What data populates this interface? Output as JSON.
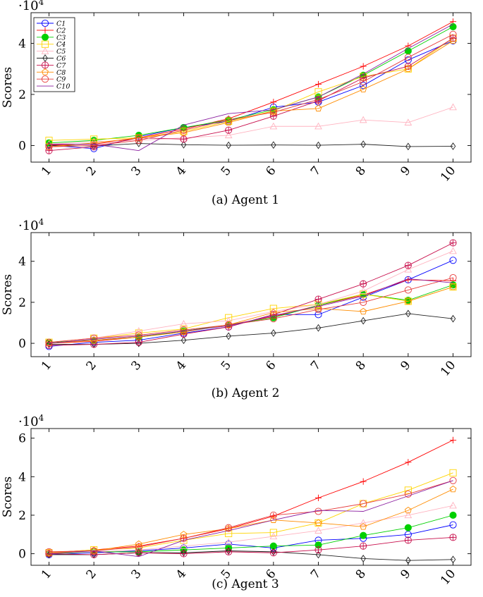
{
  "figure": {
    "subplot_ids": [
      "agent1",
      "agent2",
      "agent3"
    ]
  },
  "chart_data": [
    {
      "id": "agent1",
      "type": "line",
      "caption": "(a) Agent 1",
      "ylabel": "Scores",
      "multiplier": "·10",
      "multiplier_exp": "4",
      "xlim": [
        0.6,
        10.4
      ],
      "ylim": [
        -6500,
        52000
      ],
      "yticks": [
        0,
        20000,
        40000
      ],
      "ytick_labels": [
        "0",
        "2",
        "4"
      ],
      "x": [
        1,
        2,
        3,
        4,
        5,
        6,
        7,
        8,
        9,
        10
      ],
      "xtick_labels": [
        "1",
        "2",
        "3",
        "4",
        "5",
        "6",
        "7",
        "8",
        "9",
        "10"
      ],
      "legend": {
        "position": "top-left",
        "labels": [
          "C1",
          "C2",
          "C3",
          "C4",
          "C5",
          "C6",
          "C7",
          "C8",
          "C9",
          "C10"
        ]
      },
      "series": [
        {
          "name": "C1",
          "values": [
            100,
            -1200,
            3500,
            7000,
            9500,
            15000,
            17000,
            23500,
            33500,
            41000
          ]
        },
        {
          "name": "C2",
          "values": [
            200,
            500,
            3000,
            6500,
            10500,
            17000,
            24000,
            31000,
            39000,
            48500
          ]
        },
        {
          "name": "C3",
          "values": [
            1000,
            2000,
            4000,
            7000,
            10000,
            14000,
            19000,
            27500,
            37000,
            46500
          ]
        },
        {
          "name": "C4",
          "values": [
            2000,
            2500,
            3000,
            5500,
            9500,
            13500,
            21000,
            27000,
            30000,
            42000
          ]
        },
        {
          "name": "C5",
          "values": [
            500,
            1500,
            2000,
            3000,
            4000,
            7500,
            7500,
            10000,
            9000,
            15000
          ]
        },
        {
          "name": "C6",
          "values": [
            0,
            -200,
            800,
            300,
            100,
            200,
            100,
            500,
            -400,
            -300
          ]
        },
        {
          "name": "C7",
          "values": [
            -2000,
            -500,
            3000,
            2500,
            6000,
            11500,
            17500,
            26500,
            31000,
            42000
          ]
        },
        {
          "name": "C8",
          "values": [
            -500,
            1000,
            3000,
            5000,
            9000,
            13500,
            14500,
            22000,
            30000,
            41000
          ]
        },
        {
          "name": "C9",
          "values": [
            -500,
            0,
            2000,
            6000,
            10000,
            13000,
            18000,
            25000,
            34500,
            43500
          ]
        },
        {
          "name": "C10",
          "values": [
            500,
            500,
            -2000,
            8000,
            12500,
            14000,
            19000,
            28000,
            38000,
            47500
          ]
        }
      ]
    },
    {
      "id": "agent2",
      "type": "line",
      "caption": "(b) Agent 2",
      "ylabel": "Scores",
      "multiplier": "·10",
      "multiplier_exp": "4",
      "xlim": [
        0.6,
        10.4
      ],
      "ylim": [
        -6500,
        54000
      ],
      "yticks": [
        0,
        20000,
        40000
      ],
      "ytick_labels": [
        "0",
        "2",
        "4"
      ],
      "x": [
        1,
        2,
        3,
        4,
        5,
        6,
        7,
        8,
        9,
        10
      ],
      "xtick_labels": [
        "1",
        "2",
        "3",
        "4",
        "5",
        "6",
        "7",
        "8",
        "9",
        "10"
      ],
      "series": [
        {
          "name": "C1",
          "values": [
            -1500,
            500,
            1500,
            5000,
            8000,
            14000,
            14000,
            22500,
            31000,
            40500
          ]
        },
        {
          "name": "C2",
          "values": [
            0,
            1000,
            3000,
            6000,
            9000,
            13000,
            18500,
            23500,
            31000,
            30500
          ]
        },
        {
          "name": "C3",
          "values": [
            500,
            1500,
            3000,
            6000,
            9000,
            12500,
            18500,
            24000,
            21000,
            28500
          ]
        },
        {
          "name": "C4",
          "values": [
            500,
            2500,
            5000,
            7000,
            12500,
            17000,
            19000,
            24000,
            20500,
            27500
          ]
        },
        {
          "name": "C5",
          "values": [
            500,
            2500,
            6000,
            9500,
            11000,
            15500,
            19000,
            25500,
            36000,
            45000
          ]
        },
        {
          "name": "C6",
          "values": [
            -500,
            -500,
            0,
            1500,
            3500,
            5000,
            7500,
            11000,
            14500,
            12000
          ]
        },
        {
          "name": "C7",
          "values": [
            -1000,
            -500,
            500,
            4500,
            8000,
            14000,
            21500,
            29000,
            38000,
            49000
          ]
        },
        {
          "name": "C8",
          "values": [
            0,
            1500,
            3000,
            5500,
            9000,
            15000,
            17000,
            15500,
            20500,
            27500
          ]
        },
        {
          "name": "C9",
          "values": [
            500,
            2500,
            4000,
            6500,
            9000,
            12000,
            16500,
            20000,
            26000,
            32000
          ]
        },
        {
          "name": "C10",
          "values": [
            0,
            2000,
            3500,
            6000,
            8500,
            13500,
            18000,
            23000,
            31500,
            29500
          ]
        }
      ]
    },
    {
      "id": "agent3",
      "type": "line",
      "caption": "(c) Agent 3",
      "ylabel": "Scores",
      "multiplier": "·10",
      "multiplier_exp": "4",
      "xlim": [
        0.6,
        10.4
      ],
      "ylim": [
        -6000,
        65000
      ],
      "yticks": [
        0,
        20000,
        40000,
        60000
      ],
      "ytick_labels": [
        "0",
        "2",
        "4",
        "6"
      ],
      "x": [
        1,
        2,
        3,
        4,
        5,
        6,
        7,
        8,
        9,
        10
      ],
      "xtick_labels": [
        "1",
        "2",
        "3",
        "4",
        "5",
        "6",
        "7",
        "8",
        "9",
        "10"
      ],
      "series": [
        {
          "name": "C1",
          "values": [
            -500,
            500,
            1500,
            3000,
            5000,
            3000,
            7000,
            8000,
            10000,
            15000
          ]
        },
        {
          "name": "C2",
          "values": [
            500,
            2000,
            4000,
            8000,
            13000,
            19500,
            29000,
            37500,
            47500,
            59000
          ]
        },
        {
          "name": "C3",
          "values": [
            0,
            1000,
            1000,
            2000,
            3000,
            4000,
            4500,
            9500,
            13500,
            20000
          ]
        },
        {
          "name": "C4",
          "values": [
            500,
            2000,
            3000,
            7000,
            10500,
            11000,
            16000,
            26000,
            33000,
            42000
          ]
        },
        {
          "name": "C5",
          "values": [
            500,
            1000,
            2000,
            4000,
            6000,
            9000,
            12000,
            16000,
            20000,
            25000
          ]
        },
        {
          "name": "C6",
          "values": [
            -500,
            -500,
            500,
            500,
            1500,
            1000,
            -500,
            -2500,
            -3500,
            -3000
          ]
        },
        {
          "name": "C7",
          "values": [
            0,
            -500,
            500,
            0,
            1000,
            500,
            2000,
            4000,
            7000,
            8500
          ]
        },
        {
          "name": "C8",
          "values": [
            500,
            1500,
            5000,
            10000,
            13000,
            17500,
            16000,
            14000,
            22500,
            33500
          ]
        },
        {
          "name": "C9",
          "values": [
            1000,
            1500,
            3500,
            8000,
            13500,
            20000,
            22000,
            26000,
            31000,
            38000
          ]
        },
        {
          "name": "C10",
          "values": [
            0,
            1500,
            -1500,
            7000,
            12000,
            17500,
            22500,
            22000,
            30000,
            38000
          ]
        }
      ]
    }
  ],
  "style": {
    "series_colors": {
      "C1": "#0000ff",
      "C2": "#ff0000",
      "C3": "#00d000",
      "C4": "#ffd400",
      "C5": "#ffb3c0",
      "C6": "#222222",
      "C7": "#c8104d",
      "C8": "#ff8c00",
      "C9": "#e63b3b",
      "C10": "#8b1fa0"
    },
    "series_markers": {
      "C1": "circle-open",
      "C2": "plus",
      "C3": "circle-filled",
      "C4": "square-open",
      "C5": "triangle-open",
      "C6": "diamond-open",
      "C7": "circle-plus",
      "C8": "pentagon-open",
      "C9": "circle-open",
      "C10": "none"
    }
  }
}
